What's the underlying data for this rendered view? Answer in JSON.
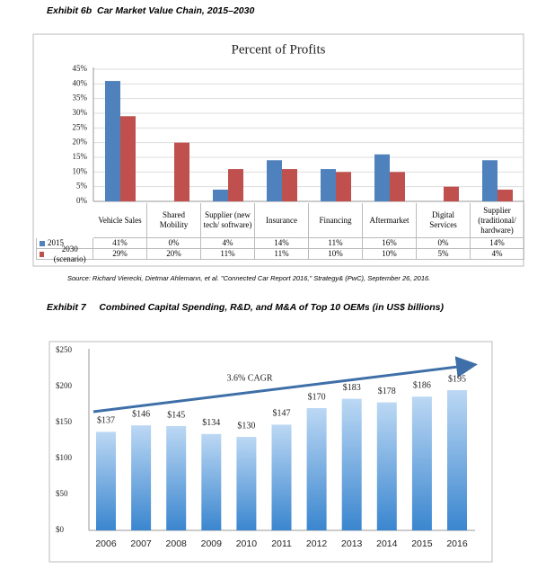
{
  "chart_data": [
    {
      "type": "bar",
      "exhibit_title": "Exhibit 6b  Car Market Value Chain, 2015–2030",
      "title": "Percent of Profits",
      "categories": [
        "Vehicle Sales",
        "Shared Mobility",
        "Supplier (new tech/ software)",
        "Insurance",
        "Financing",
        "Aftermarket",
        "Digital Services",
        "Supplier (traditional/ hardware)"
      ],
      "series": [
        {
          "name": "2015",
          "color": "#4f81bd",
          "values": [
            41,
            0,
            4,
            14,
            11,
            16,
            0,
            14
          ],
          "value_labels": [
            "41%",
            "0%",
            "4%",
            "14%",
            "11%",
            "16%",
            "0%",
            "14%"
          ]
        },
        {
          "name": "2030 (scenario)",
          "color": "#c0504d",
          "values": [
            29,
            20,
            11,
            11,
            10,
            10,
            5,
            4
          ],
          "value_labels": [
            "29%",
            "20%",
            "11%",
            "11%",
            "10%",
            "10%",
            "5%",
            "4%"
          ]
        }
      ],
      "ylim": [
        0,
        45
      ],
      "yticks": [
        {
          "value": 0,
          "label": "0%"
        },
        {
          "value": 5,
          "label": "5%"
        },
        {
          "value": 10,
          "label": "10%"
        },
        {
          "value": 15,
          "label": "15%"
        },
        {
          "value": 20,
          "label": "20%"
        },
        {
          "value": 25,
          "label": "25%"
        },
        {
          "value": 30,
          "label": "30%"
        },
        {
          "value": 35,
          "label": "35%"
        },
        {
          "value": 40,
          "label": "40%"
        },
        {
          "value": 45,
          "label": "45%"
        }
      ],
      "grid": true,
      "source": "Source: Richard Vierecki, Dietmar Ahlemann, et al. \"Connected Car Report 2016,\" Strategy& (PwC), September 26, 2016."
    },
    {
      "type": "bar",
      "exhibit_title": "Exhibit 7     Combined Capital Spending, R&D, and M&A of Top 10 OEMs (in US$ billions)",
      "categories": [
        "2006",
        "2007",
        "2008",
        "2009",
        "2010",
        "2011",
        "2012",
        "2013",
        "2014",
        "2015",
        "2016"
      ],
      "values": [
        137,
        146,
        145,
        134,
        130,
        147,
        170,
        183,
        178,
        186,
        195
      ],
      "value_labels": [
        "$137",
        "$146",
        "$145",
        "$134",
        "$130",
        "$147",
        "$170",
        "$183",
        "$178",
        "$186",
        "$195"
      ],
      "color": "#5b9bd5",
      "ylim": [
        0,
        250
      ],
      "yticks": [
        {
          "value": 0,
          "label": "$0"
        },
        {
          "value": 50,
          "label": "$50"
        },
        {
          "value": 100,
          "label": "$100"
        },
        {
          "value": 150,
          "label": "$150"
        },
        {
          "value": 200,
          "label": "$200"
        },
        {
          "value": 250,
          "label": "$250"
        }
      ],
      "grid": false,
      "annotation": "3.6% CAGR"
    }
  ]
}
